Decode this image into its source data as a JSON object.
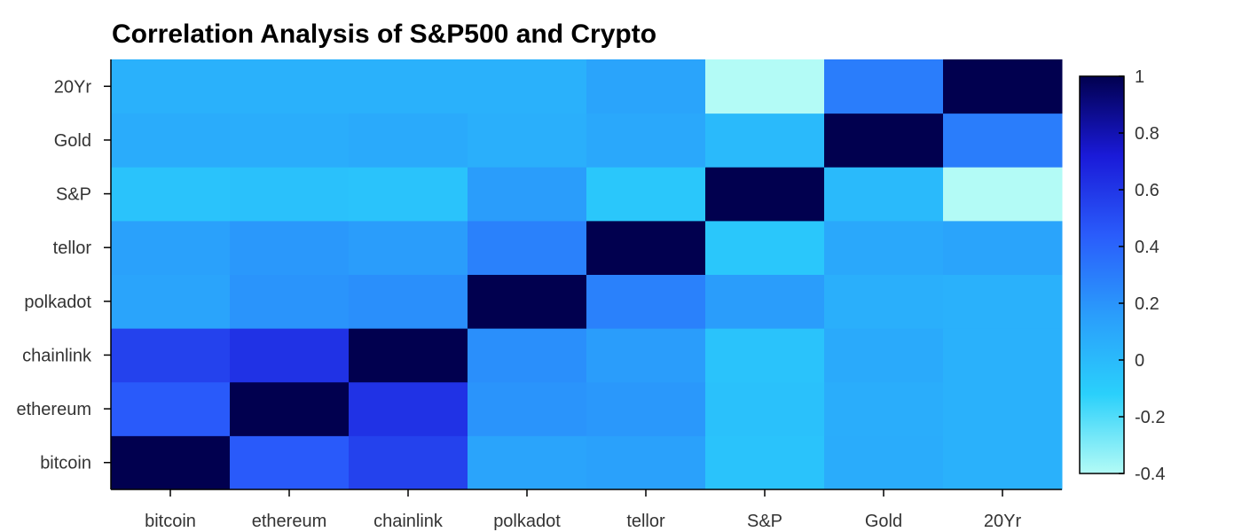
{
  "chart_data": {
    "type": "heatmap",
    "title": "Correlation Analysis of S&P500 and Crypto",
    "xlabel": "",
    "ylabel": "",
    "x": [
      "bitcoin",
      "ethereum",
      "chainlink",
      "polkadot",
      "tellor",
      "S&P",
      "Gold",
      "20Yr"
    ],
    "y": [
      "bitcoin",
      "ethereum",
      "chainlink",
      "polkadot",
      "tellor",
      "S&P",
      "Gold",
      "20Yr"
    ],
    "z": [
      [
        1.0,
        0.45,
        0.55,
        0.12,
        0.14,
        -0.05,
        0.08,
        0.05
      ],
      [
        0.45,
        1.0,
        0.62,
        0.2,
        0.18,
        -0.04,
        0.07,
        0.05
      ],
      [
        0.55,
        0.62,
        1.0,
        0.22,
        0.16,
        -0.05,
        0.09,
        0.05
      ],
      [
        0.12,
        0.2,
        0.22,
        1.0,
        0.28,
        0.16,
        0.06,
        0.05
      ],
      [
        0.14,
        0.18,
        0.16,
        0.28,
        1.0,
        -0.07,
        0.1,
        0.12
      ],
      [
        -0.05,
        -0.04,
        -0.05,
        0.16,
        -0.07,
        1.0,
        0.0,
        -0.4
      ],
      [
        0.08,
        0.07,
        0.09,
        0.06,
        0.1,
        0.0,
        1.0,
        0.3
      ],
      [
        0.05,
        0.05,
        0.05,
        0.05,
        0.12,
        -0.4,
        0.3,
        1.0
      ]
    ],
    "colorscale": {
      "min": -0.4,
      "max": 1,
      "stops": [
        [
          0.0,
          "#b3fbf6"
        ],
        [
          0.2,
          "#2ad0fb"
        ],
        [
          0.4,
          "#2a9dfb"
        ],
        [
          0.6,
          "#2a5cfb"
        ],
        [
          0.8,
          "#1a1ad8"
        ],
        [
          1.0,
          "#01004f"
        ]
      ],
      "ticks": [
        "1",
        "0.8",
        "0.6",
        "0.4",
        "0.2",
        "0",
        "-0.2",
        "-0.4"
      ]
    }
  }
}
